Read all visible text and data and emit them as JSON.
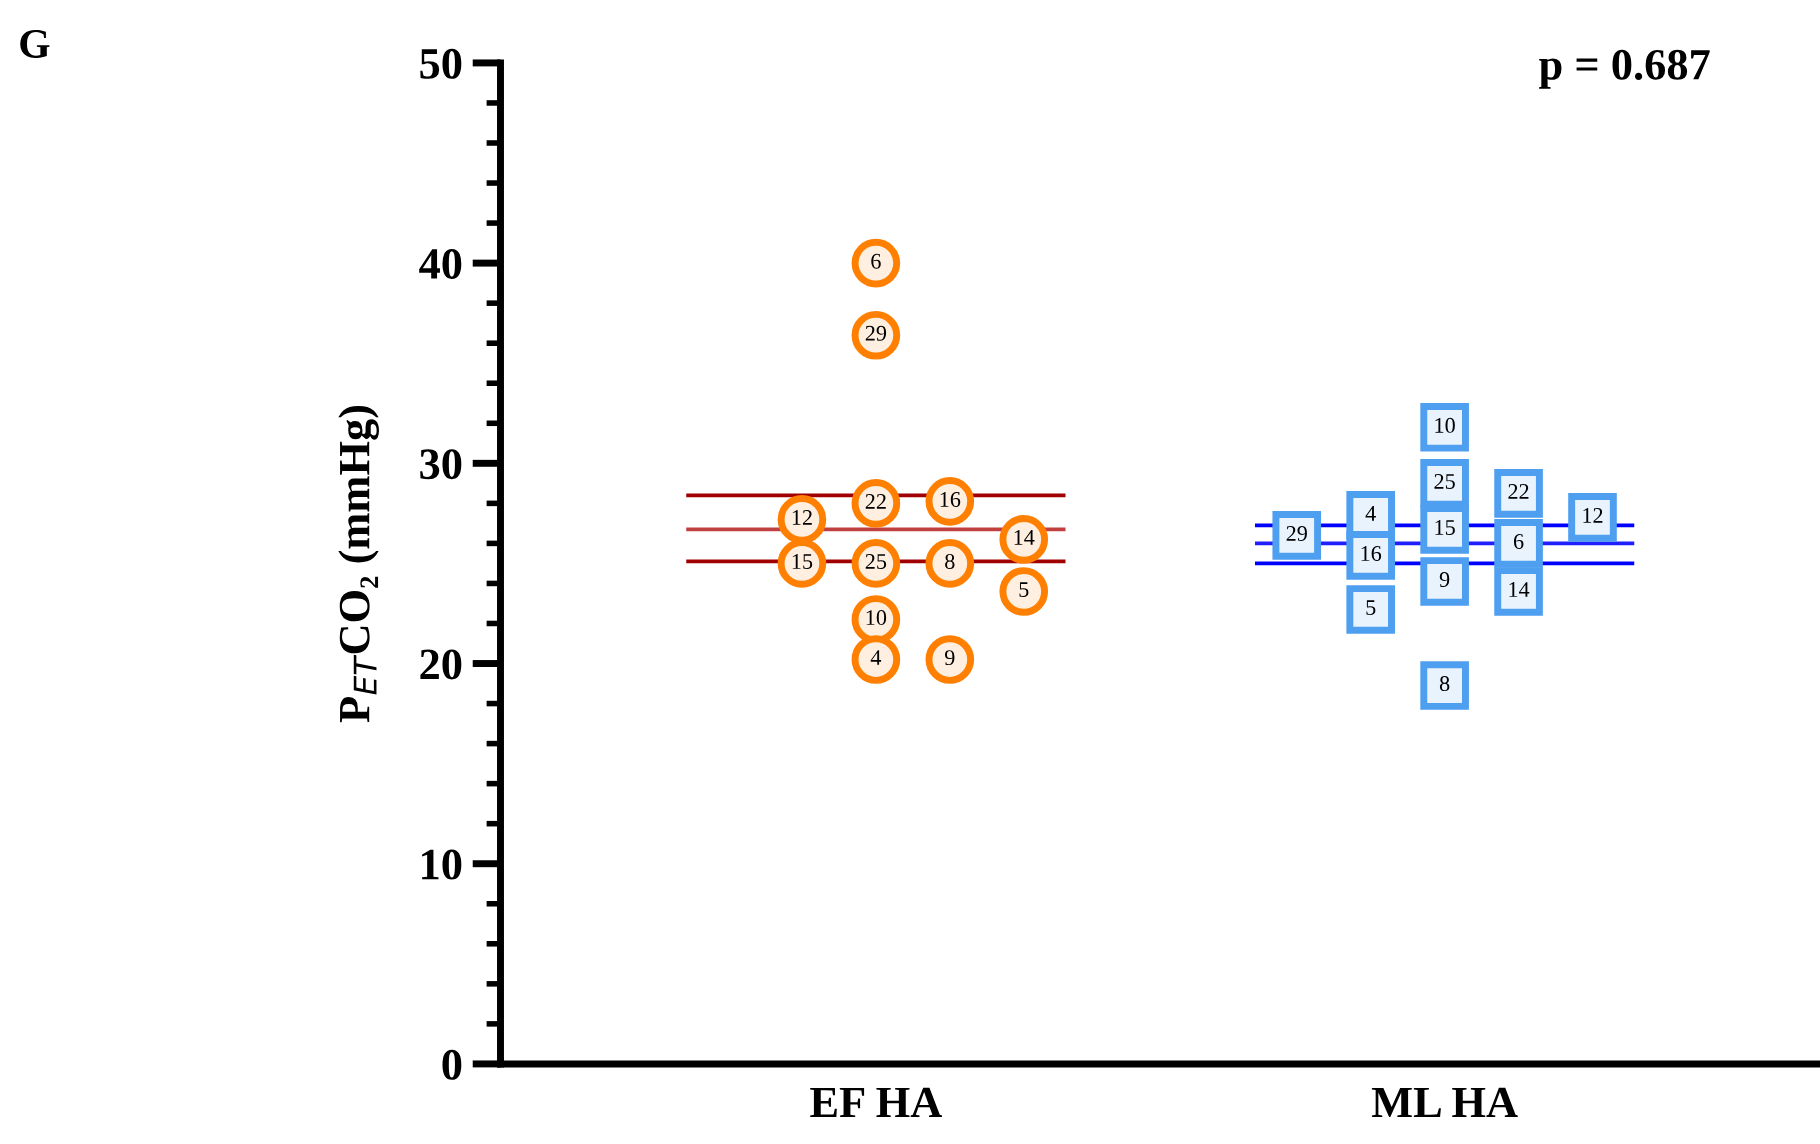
{
  "chart_data": {
    "type": "scatter",
    "ylabel": "P$_{ET}$CO₂ (mmHg)",
    "categories": [
      "EF HA",
      "ML HA"
    ],
    "ylim": [
      0,
      50
    ],
    "yticks": [
      0,
      10,
      20,
      30,
      40,
      50
    ],
    "grid": false,
    "legend": false,
    "ref_lines": [
      {
        "axis": "y",
        "value": 26.7,
        "color": "#c04040"
      },
      {
        "axis": "y",
        "value": 26.0,
        "color": "#2020ff"
      },
      {
        "axis": "y",
        "value": 28.4,
        "color": "#a00000"
      },
      {
        "axis": "y",
        "value": 26.9,
        "color": "#0000ff"
      },
      {
        "axis": "y",
        "value": 25.1,
        "color": "#a00000"
      },
      {
        "axis": "y",
        "value": 25.0,
        "color": "#0000ff"
      }
    ],
    "annotations": [
      "G",
      "p = 0.687",
      "6",
      "29",
      "22",
      "16",
      "12",
      "14",
      "25",
      "8",
      "15",
      "5",
      "10",
      "4",
      "9",
      "10",
      "25",
      "22",
      "4",
      "12",
      "15",
      "6",
      "29",
      "16",
      "9",
      "14",
      "5",
      "8"
    ],
    "series": [
      {
        "x": [
          "EF HA",
          "EF HA",
          "EF HA",
          "EF HA",
          "EF HA",
          "EF HA",
          "EF HA",
          "EF HA",
          "EF HA",
          "EF HA",
          "EF HA",
          "EF HA",
          "EF HA"
        ],
        "values": [
          40.0,
          36.4,
          28.0,
          28.1,
          27.2,
          26.2,
          25.0,
          25.0,
          25.0,
          23.6,
          22.2,
          20.2,
          20.2
        ],
        "color": "#ff8000",
        "marker": "circle"
      },
      {
        "x": [
          "ML HA",
          "ML HA",
          "ML HA",
          "ML HA",
          "ML HA",
          "ML HA",
          "ML HA",
          "ML HA",
          "ML HA",
          "ML HA",
          "ML HA",
          "ML HA",
          "ML HA"
        ],
        "values": [
          31.8,
          29.0,
          28.5,
          27.4,
          27.3,
          26.7,
          26.0,
          26.4,
          25.4,
          24.1,
          23.6,
          22.7,
          18.9
        ],
        "color": "#4f9ff0",
        "marker": "square"
      }
    ]
  }
}
